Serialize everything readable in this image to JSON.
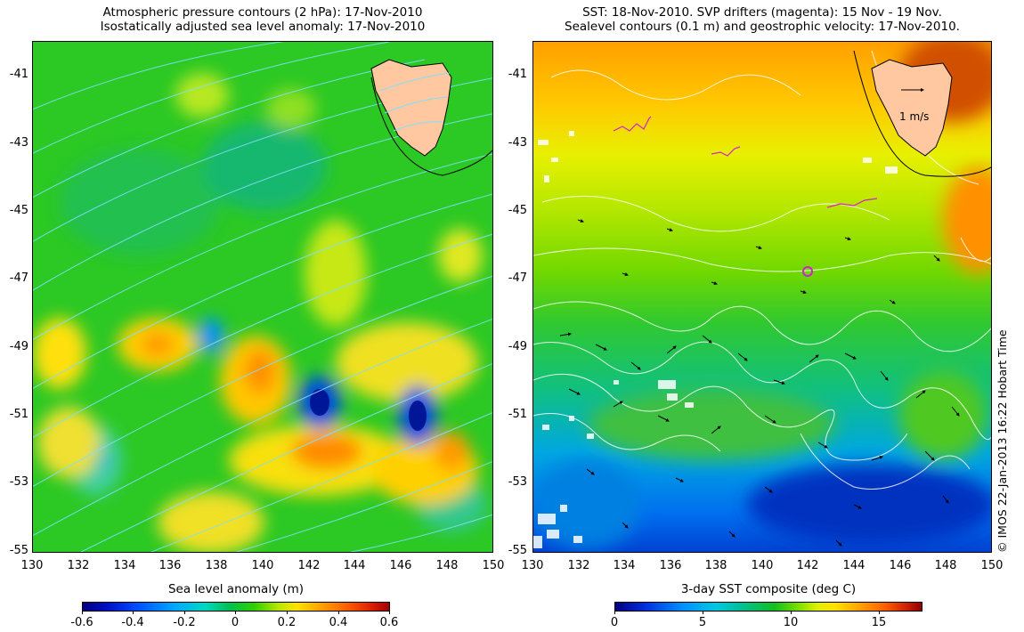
{
  "left_panel": {
    "title_line1": "Atmospheric pressure contours (2 hPa): 17-Nov-2010",
    "title_line2": "Isostatically adjusted sea level anomaly: 17-Nov-2010",
    "colorbar_label": "Sea level anomaly (m)",
    "colorbar_ticks": [
      "-0.6",
      "-0.4",
      "-0.2",
      "0",
      "0.2",
      "0.4",
      "0.6"
    ],
    "colorbar_range": [
      -0.6,
      0.6
    ],
    "x_ticks": [
      "130",
      "132",
      "134",
      "136",
      "138",
      "140",
      "142",
      "144",
      "146",
      "148",
      "150"
    ],
    "y_ticks": [
      "-41",
      "-43",
      "-45",
      "-47",
      "-49",
      "-51",
      "-53",
      "-55"
    ]
  },
  "right_panel": {
    "title_line1": "SST: 18-Nov-2010. SVP drifters (magenta): 15 Nov - 19 Nov.",
    "title_line2": "Sealevel contours (0.1 m) and geostrophic velocity: 17-Nov-2010.",
    "scale_label": "1 m/s",
    "colorbar_label": "3-day SST composite (deg C)",
    "colorbar_ticks": [
      "0",
      "5",
      "10",
      "15"
    ],
    "colorbar_range": [
      0,
      17.5
    ],
    "x_ticks": [
      "130",
      "132",
      "134",
      "136",
      "138",
      "140",
      "142",
      "144",
      "146",
      "148",
      "150"
    ],
    "y_ticks": [
      "-41",
      "-43",
      "-45",
      "-47",
      "-49",
      "-51",
      "-53",
      "-55"
    ]
  },
  "credit": "© IMOS 22-Jan-2013 16:22 Hobart Time",
  "colors": {
    "land": "#ffc8a0",
    "pressure_contour": "#7fdfff",
    "sea_level_contour": "#ffffff",
    "drifters": "#d020d0",
    "velocity_arrows": "#000000"
  }
}
